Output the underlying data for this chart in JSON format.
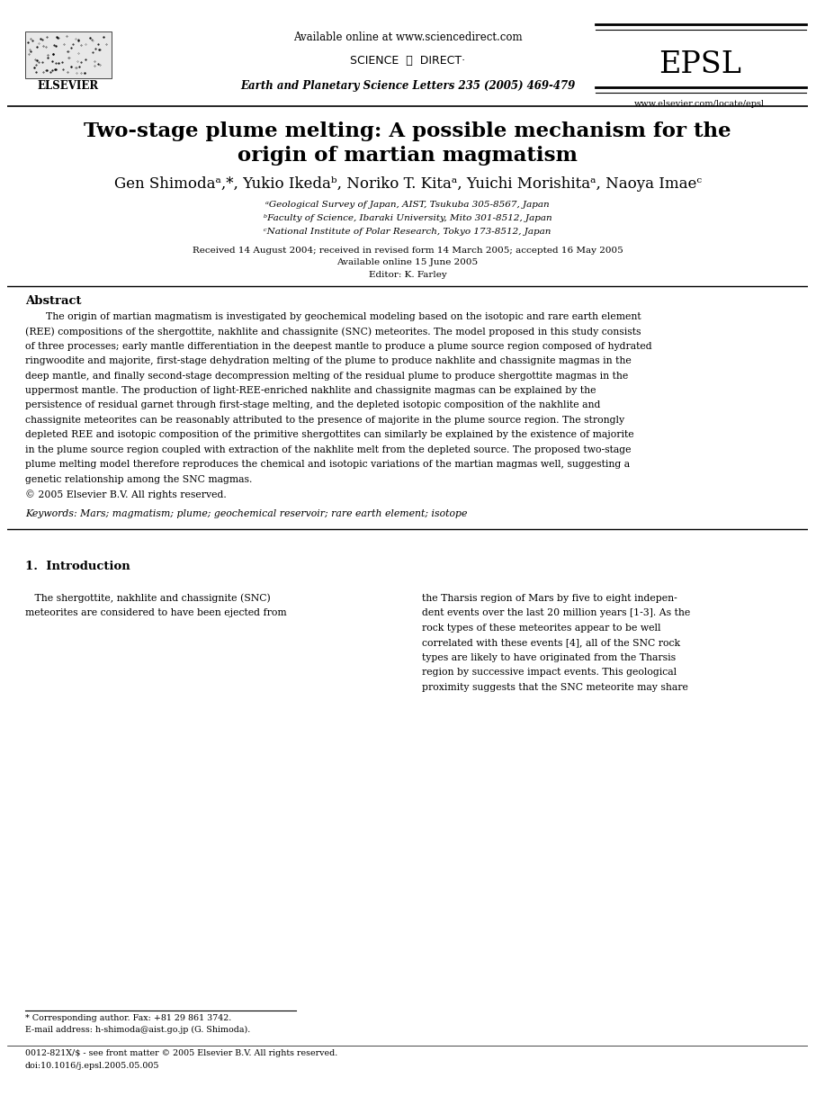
{
  "bg_color": "#ffffff",
  "header_available_text": "Available online at www.sciencedirect.com",
  "header_journal_text": "Earth and Planetary Science Letters 235 (2005) 469-479",
  "header_epsl_text": "EPSL",
  "header_website_text": "www.elsevier.com/locate/epsl",
  "header_elsevier_text": "ELSEVIER",
  "title_line1": "Two-stage plume melting: A possible mechanism for the",
  "title_line2": "origin of martian magmatism",
  "authors_text": "Gen Shimodaᵃ,*, Yukio Ikedaᵇ, Noriko T. Kitaᵃ, Yuichi Morishitaᵃ, Naoya Imaeᶜ",
  "affil_a": "ᵃGeological Survey of Japan, AIST, Tsukuba 305-8567, Japan",
  "affil_b": "ᵇFaculty of Science, Ibaraki University, Mito 301-8512, Japan",
  "affil_c": "ᶜNational Institute of Polar Research, Tokyo 173-8512, Japan",
  "received_text": "Received 14 August 2004; received in revised form 14 March 2005; accepted 16 May 2005",
  "available_text": "Available online 15 June 2005",
  "editor_text": "Editor: K. Farley",
  "abstract_heading": "Abstract",
  "abstract_lines": [
    "The origin of martian magmatism is investigated by geochemical modeling based on the isotopic and rare earth element",
    "(REE) compositions of the shergottite, nakhlite and chassignite (SNC) meteorites. The model proposed in this study consists",
    "of three processes; early mantle differentiation in the deepest mantle to produce a plume source region composed of hydrated",
    "ringwoodite and majorite, first-stage dehydration melting of the plume to produce nakhlite and chassignite magmas in the",
    "deep mantle, and finally second-stage decompression melting of the residual plume to produce shergottite magmas in the",
    "uppermost mantle. The production of light-REE-enriched nakhlite and chassignite magmas can be explained by the",
    "persistence of residual garnet through first-stage melting, and the depleted isotopic composition of the nakhlite and",
    "chassignite meteorites can be reasonably attributed to the presence of majorite in the plume source region. The strongly",
    "depleted REE and isotopic composition of the primitive shergottites can similarly be explained by the existence of majorite",
    "in the plume source region coupled with extraction of the nakhlite melt from the depleted source. The proposed two-stage",
    "plume melting model therefore reproduces the chemical and isotopic variations of the martian magmas well, suggesting a",
    "genetic relationship among the SNC magmas.",
    "© 2005 Elsevier B.V. All rights reserved."
  ],
  "keywords_text": "Keywords: Mars; magmatism; plume; geochemical reservoir; rare earth element; isotope",
  "section1_heading": "1.  Introduction",
  "intro_col1_lines": [
    "   The shergottite, nakhlite and chassignite (SNC)",
    "meteorites are considered to have been ejected from"
  ],
  "intro_col2_lines": [
    "the Tharsis region of Mars by five to eight indepen-",
    "dent events over the last 20 million years [1-3]. As the",
    "rock types of these meteorites appear to be well",
    "correlated with these events [4], all of the SNC rock",
    "types are likely to have originated from the Tharsis",
    "region by successive impact events. This geological",
    "proximity suggests that the SNC meteorite may share"
  ],
  "footnote_corr": "* Corresponding author. Fax: +81 29 861 3742.",
  "footnote_email": "E-mail address: h-shimoda@aist.go.jp (G. Shimoda).",
  "footnote_issn": "0012-821X/$ - see front matter © 2005 Elsevier B.V. All rights reserved.",
  "footnote_doi": "doi:10.1016/j.epsl.2005.05.005",
  "scidir_text": "SCIENCE  ⓓ  DIRECT·"
}
